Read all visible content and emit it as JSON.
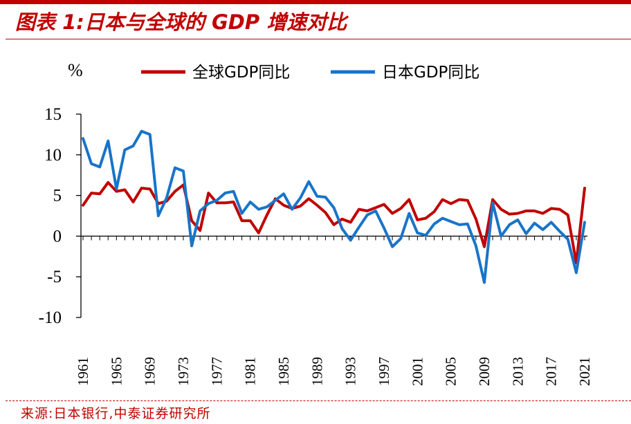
{
  "header": {
    "title": "图表 1:日本与全球的 GDP 增速对比"
  },
  "footer": {
    "source": "来源:日本银行,中泰证券研究所"
  },
  "chart_data": {
    "type": "line",
    "title": "图表 1:日本与全球的 GDP 增速对比",
    "ylabel": "%",
    "xlabel": "",
    "ylim": [
      -10,
      15
    ],
    "yticks": [
      "15",
      "10",
      "5",
      "0",
      "-5",
      "-10"
    ],
    "xtick_labels": [
      "1961",
      "1965",
      "1969",
      "1973",
      "1977",
      "1981",
      "1985",
      "1989",
      "1993",
      "1997",
      "2001",
      "2005",
      "2009",
      "2013",
      "2017",
      "2021"
    ],
    "x": [
      1961,
      1962,
      1963,
      1964,
      1965,
      1966,
      1967,
      1968,
      1969,
      1970,
      1971,
      1972,
      1973,
      1974,
      1975,
      1976,
      1977,
      1978,
      1979,
      1980,
      1981,
      1982,
      1983,
      1984,
      1985,
      1986,
      1987,
      1988,
      1989,
      1990,
      1991,
      1992,
      1993,
      1994,
      1995,
      1996,
      1997,
      1998,
      1999,
      2000,
      2001,
      2002,
      2003,
      2004,
      2005,
      2006,
      2007,
      2008,
      2009,
      2010,
      2011,
      2012,
      2013,
      2014,
      2015,
      2016,
      2017,
      2018,
      2019,
      2020,
      2021
    ],
    "series": [
      {
        "name": "全球GDP同比",
        "color": "#c00000",
        "values": [
          3.8,
          5.3,
          5.2,
          6.6,
          5.5,
          5.7,
          4.2,
          5.9,
          5.8,
          4.0,
          4.3,
          5.5,
          6.3,
          1.9,
          0.7,
          5.3,
          4.1,
          4.1,
          4.2,
          1.9,
          1.9,
          0.4,
          2.6,
          4.6,
          3.8,
          3.4,
          3.7,
          4.6,
          3.8,
          2.9,
          1.4,
          2.1,
          1.7,
          3.3,
          3.1,
          3.5,
          3.9,
          2.8,
          3.4,
          4.5,
          2.0,
          2.2,
          3.0,
          4.5,
          4.0,
          4.5,
          4.4,
          2.1,
          -1.3,
          4.5,
          3.3,
          2.7,
          2.8,
          3.1,
          3.1,
          2.8,
          3.4,
          3.3,
          2.6,
          -3.3,
          5.9
        ]
      },
      {
        "name": "日本GDP同比",
        "color": "#1874c8",
        "values": [
          12.0,
          8.9,
          8.5,
          11.7,
          5.8,
          10.6,
          11.1,
          12.9,
          12.5,
          2.5,
          4.7,
          8.4,
          8.0,
          -1.2,
          3.1,
          4.0,
          4.4,
          5.3,
          5.5,
          2.8,
          4.2,
          3.3,
          3.6,
          4.4,
          5.2,
          3.3,
          4.7,
          6.7,
          4.9,
          4.8,
          3.5,
          0.9,
          -0.5,
          1.1,
          2.6,
          3.1,
          1.0,
          -1.3,
          -0.3,
          2.8,
          0.4,
          0.1,
          1.5,
          2.2,
          1.8,
          1.4,
          1.5,
          -1.2,
          -5.7,
          4.1,
          0.0,
          1.4,
          2.0,
          0.3,
          1.6,
          0.8,
          1.7,
          0.6,
          -0.4,
          -4.5,
          1.7
        ]
      }
    ],
    "legend": "top"
  }
}
